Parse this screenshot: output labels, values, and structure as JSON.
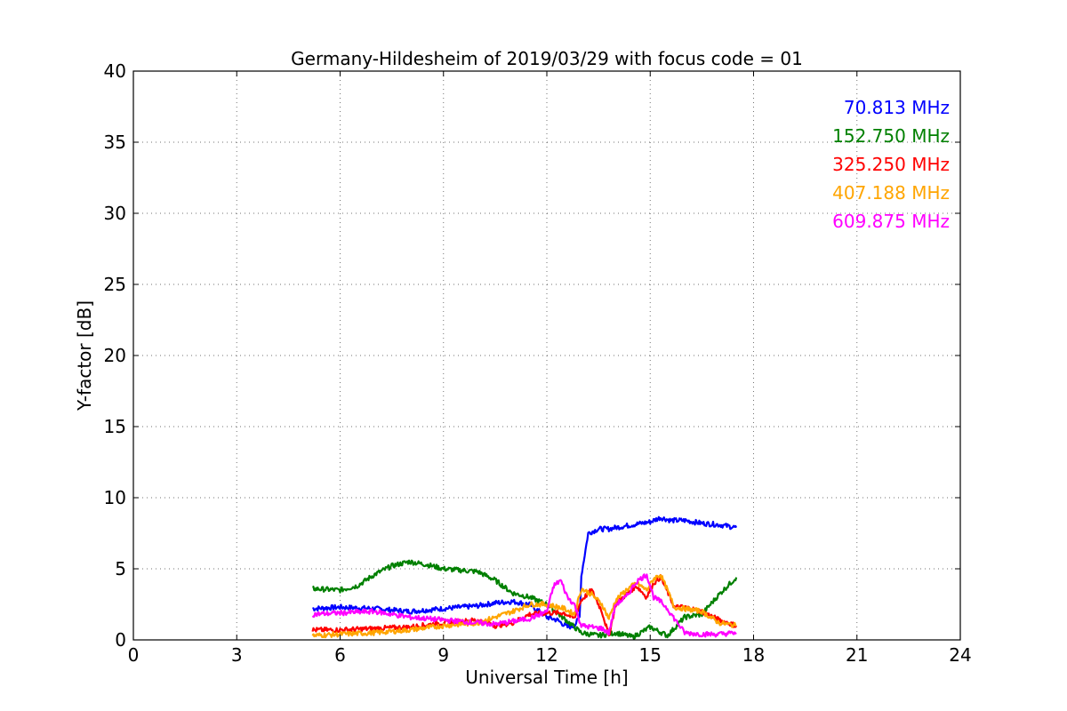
{
  "chart_data": {
    "type": "line",
    "title": "Germany-Hildesheim of 2019/03/29 with focus code = 01",
    "xlabel": "Universal Time [h]",
    "ylabel": "Y-factor [dB]",
    "xlim": [
      0,
      24
    ],
    "ylim": [
      0,
      40
    ],
    "xticks": [
      0,
      3,
      6,
      9,
      12,
      15,
      18,
      21,
      24
    ],
    "yticks": [
      0,
      5,
      10,
      15,
      20,
      25,
      30,
      35,
      40
    ],
    "grid": true,
    "legend_position": "top-right",
    "series": [
      {
        "name": "70.813 MHz",
        "color": "#0000ff",
        "x": [
          5.2,
          6,
          7,
          8,
          9,
          10,
          10.5,
          11,
          11.5,
          12,
          12.3,
          12.6,
          12.8,
          12.95,
          13.0,
          13.2,
          13.5,
          13.8,
          14,
          14.5,
          15,
          15.3,
          15.6,
          16,
          16.5,
          17,
          17.5
        ],
        "values": [
          2.2,
          2.3,
          2.2,
          2.0,
          2.2,
          2.4,
          2.6,
          2.7,
          2.5,
          1.6,
          1.4,
          0.9,
          1.0,
          1.6,
          4.5,
          7.5,
          7.8,
          7.8,
          7.9,
          8.1,
          8.3,
          8.6,
          8.4,
          8.4,
          8.2,
          8.1,
          7.9
        ]
      },
      {
        "name": "152.750 MHz",
        "color": "#008000",
        "x": [
          5.2,
          6,
          6.5,
          7,
          7.5,
          8,
          8.5,
          9,
          9.5,
          10,
          10.5,
          11,
          11.5,
          12,
          12.5,
          13,
          13.5,
          14,
          14.5,
          15,
          15.5,
          16,
          16.5,
          17,
          17.5
        ],
        "values": [
          3.6,
          3.5,
          3.8,
          4.6,
          5.2,
          5.5,
          5.3,
          5.0,
          4.9,
          4.8,
          4.2,
          3.3,
          3.0,
          2.5,
          1.5,
          0.5,
          0.3,
          0.5,
          0.2,
          0.9,
          0.3,
          1.6,
          1.8,
          3.2,
          4.4
        ]
      },
      {
        "name": "325.250 MHz",
        "color": "#ff0000",
        "x": [
          5.2,
          6,
          7,
          8,
          9,
          10,
          10.5,
          11,
          11.5,
          12,
          12.5,
          12.8,
          13,
          13.3,
          13.6,
          13.8,
          14,
          14.3,
          14.6,
          14.9,
          15.1,
          15.3,
          15.5,
          15.7,
          16,
          16.5,
          17,
          17.5
        ],
        "values": [
          0.7,
          0.7,
          0.8,
          0.9,
          1.2,
          1.4,
          1.0,
          1.2,
          1.8,
          1.9,
          1.9,
          1.5,
          2.8,
          3.5,
          2.0,
          0.3,
          2.5,
          3.2,
          3.8,
          3.0,
          4.0,
          4.4,
          3.4,
          2.3,
          2.3,
          2.0,
          1.4,
          1.0
        ]
      },
      {
        "name": "407.188 MHz",
        "color": "#ffa500",
        "x": [
          5.2,
          6,
          7,
          8,
          9,
          10,
          10.5,
          11,
          11.5,
          12,
          12.5,
          12.8,
          13,
          13.3,
          13.6,
          13.8,
          14,
          14.3,
          14.6,
          14.9,
          15.1,
          15.3,
          15.5,
          15.7,
          16,
          16.5,
          17,
          17.5
        ],
        "values": [
          0.3,
          0.4,
          0.5,
          0.7,
          1.0,
          1.2,
          1.6,
          2.0,
          2.5,
          2.5,
          2.2,
          1.8,
          3.6,
          3.2,
          2.5,
          1.5,
          2.8,
          3.5,
          4.0,
          3.5,
          4.3,
          4.6,
          3.5,
          2.3,
          2.2,
          2.0,
          1.2,
          1.0
        ]
      },
      {
        "name": "609.875 MHz",
        "color": "#ff00ff",
        "x": [
          5.2,
          6,
          7,
          8,
          9,
          10,
          10.5,
          11,
          11.5,
          12,
          12.2,
          12.4,
          12.6,
          12.8,
          13,
          13.3,
          13.6,
          13.8,
          14,
          14.3,
          14.6,
          14.9,
          15.1,
          15.3,
          15.5,
          15.7,
          16,
          16.5,
          17,
          17.5
        ],
        "values": [
          1.8,
          1.9,
          2.0,
          1.6,
          1.4,
          1.2,
          1.1,
          1.3,
          1.5,
          2.0,
          3.8,
          4.2,
          3.0,
          2.5,
          1.0,
          0.9,
          0.8,
          0.5,
          2.5,
          3.0,
          4.1,
          4.6,
          3.0,
          2.7,
          2.2,
          1.5,
          0.5,
          0.4,
          0.4,
          0.5
        ]
      }
    ]
  }
}
